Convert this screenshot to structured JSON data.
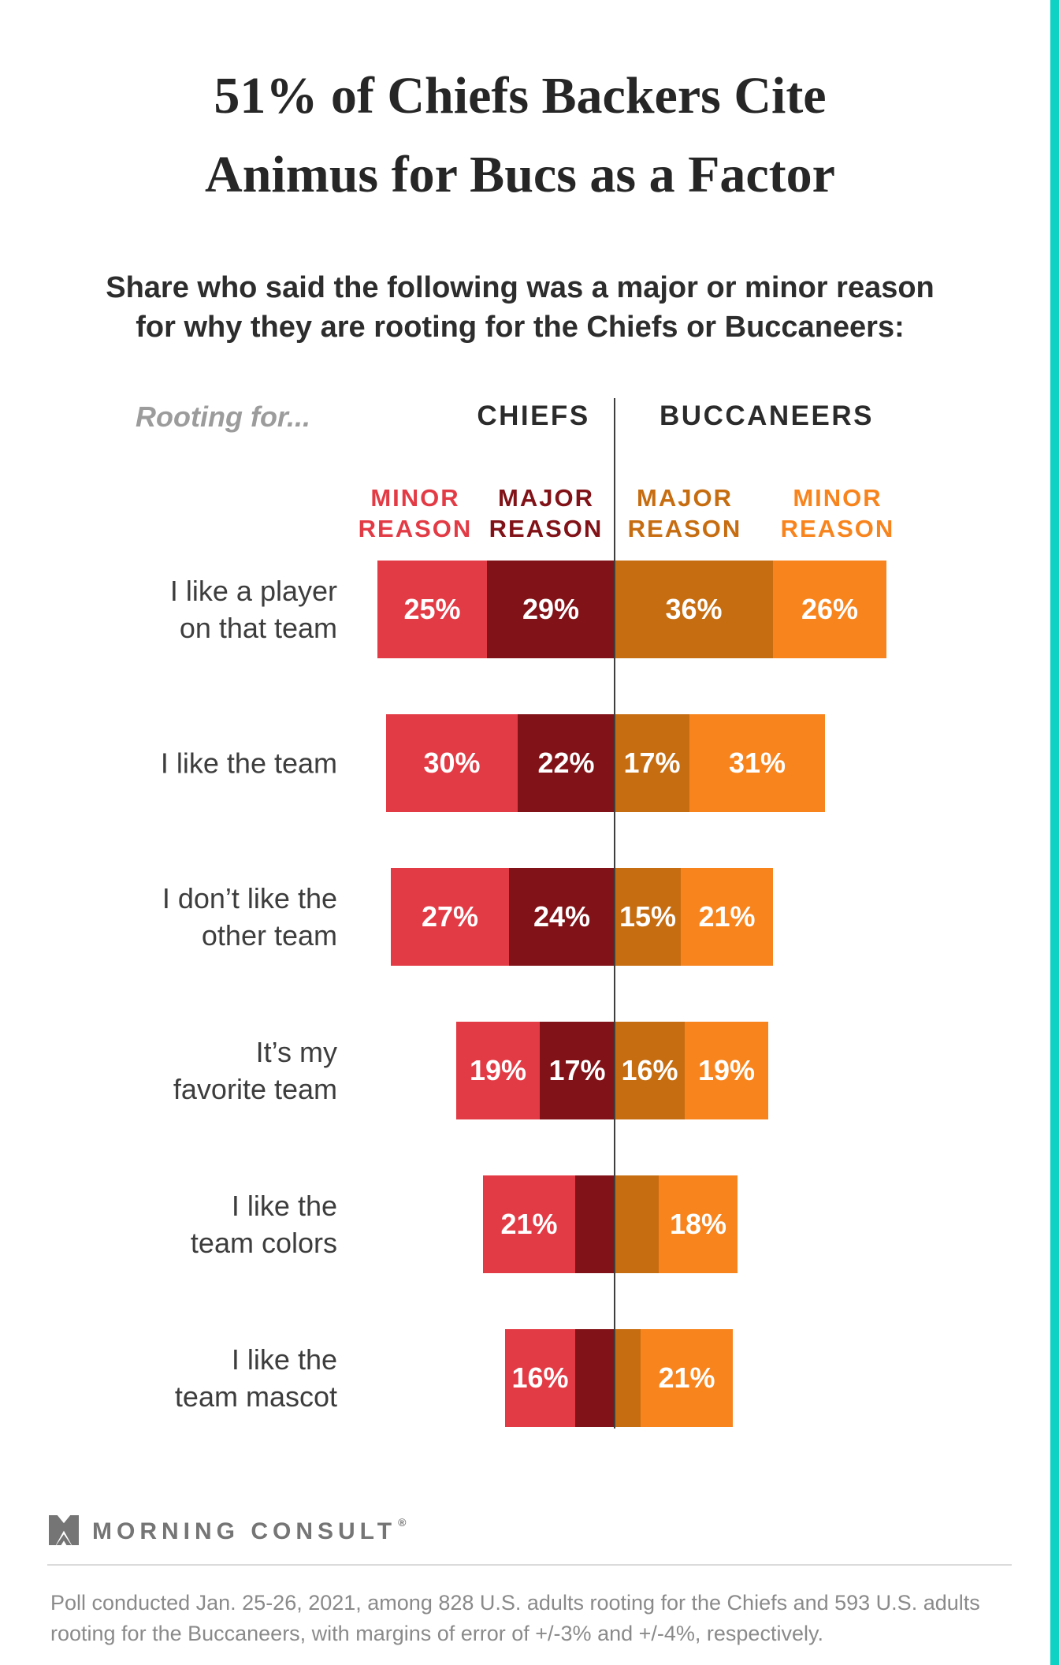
{
  "colors": {
    "chiefs_minor_red": "#e33b45",
    "chiefs_major_maroon": "#811217",
    "bucs_major_dark_orange": "#c76d11",
    "bucs_minor_orange": "#f8841d",
    "teal_edge": "#0ed2c4",
    "center_divider_line": "#3f3f3f",
    "logo_gray": "#757575"
  },
  "header": {
    "title": "51% of Chiefs Backers Cite\nAnimus for Bucs as a Factor",
    "subtitle": "Share who said the following was a major or minor reason\nfor why they are rooting for the Chiefs or Buccaneers:"
  },
  "chart": {
    "rooting_for_label": "Rooting for...",
    "left_team_header": "CHIEFS",
    "right_team_header": "BUCCANEERS",
    "column_labels": {
      "chiefs_minor": "MINOR\nREASON",
      "chiefs_major": "MAJOR\nREASON",
      "bucs_major": "MAJOR\nREASON",
      "bucs_minor": "MINOR\nREASON"
    }
  },
  "chart_data": {
    "type": "bar",
    "variant": "diverging_stacked_horizontal",
    "unit": "percent",
    "title": "51% of Chiefs Backers Cite Animus for Bucs as a Factor",
    "subtitle": "Share who said the following was a major or minor reason for why they are rooting for the Chiefs or Buccaneers:",
    "categories": [
      "I like a player\non that team",
      "I like the team",
      "I don’t like the\nother team",
      "It’s my\nfavorite team",
      "I like the\nteam colors",
      "I like the\nteam mascot"
    ],
    "series": [
      {
        "name": "Chiefs minor reason",
        "side": "left",
        "stack_position": "outer",
        "color": "#e33b45",
        "values": [
          25,
          30,
          27,
          19,
          21,
          16
        ],
        "data_labels": [
          "25%",
          "30%",
          "27%",
          "19%",
          "21%",
          "16%"
        ]
      },
      {
        "name": "Chiefs major reason",
        "side": "left",
        "stack_position": "inner",
        "color": "#811217",
        "values": [
          29,
          22,
          24,
          17,
          9,
          9
        ],
        "data_labels": [
          "29%",
          "22%",
          "24%",
          "17%",
          null,
          null
        ]
      },
      {
        "name": "Buccaneers major reason",
        "side": "right",
        "stack_position": "inner",
        "color": "#c76d11",
        "values": [
          36,
          17,
          15,
          16,
          10,
          6
        ],
        "data_labels": [
          "36%",
          "17%",
          "15%",
          "16%",
          null,
          null
        ]
      },
      {
        "name": "Buccaneers minor reason",
        "side": "right",
        "stack_position": "outer",
        "color": "#f8841d",
        "values": [
          26,
          31,
          21,
          19,
          18,
          21
        ],
        "data_labels": [
          "26%",
          "31%",
          "21%",
          "19%",
          "18%",
          "21%"
        ]
      }
    ],
    "center_axis_divider": true,
    "legend_position": "column-headers-above-bars"
  },
  "footer": {
    "logo_text": "MORNING CONSULT",
    "registered_mark": "®",
    "footnote": "Poll conducted Jan. 25-26, 2021, among 828 U.S. adults rooting for the Chiefs and 593 U.S. adults\nrooting for the Buccaneers, with margins of error of +/-3% and +/-4%, respectively."
  }
}
